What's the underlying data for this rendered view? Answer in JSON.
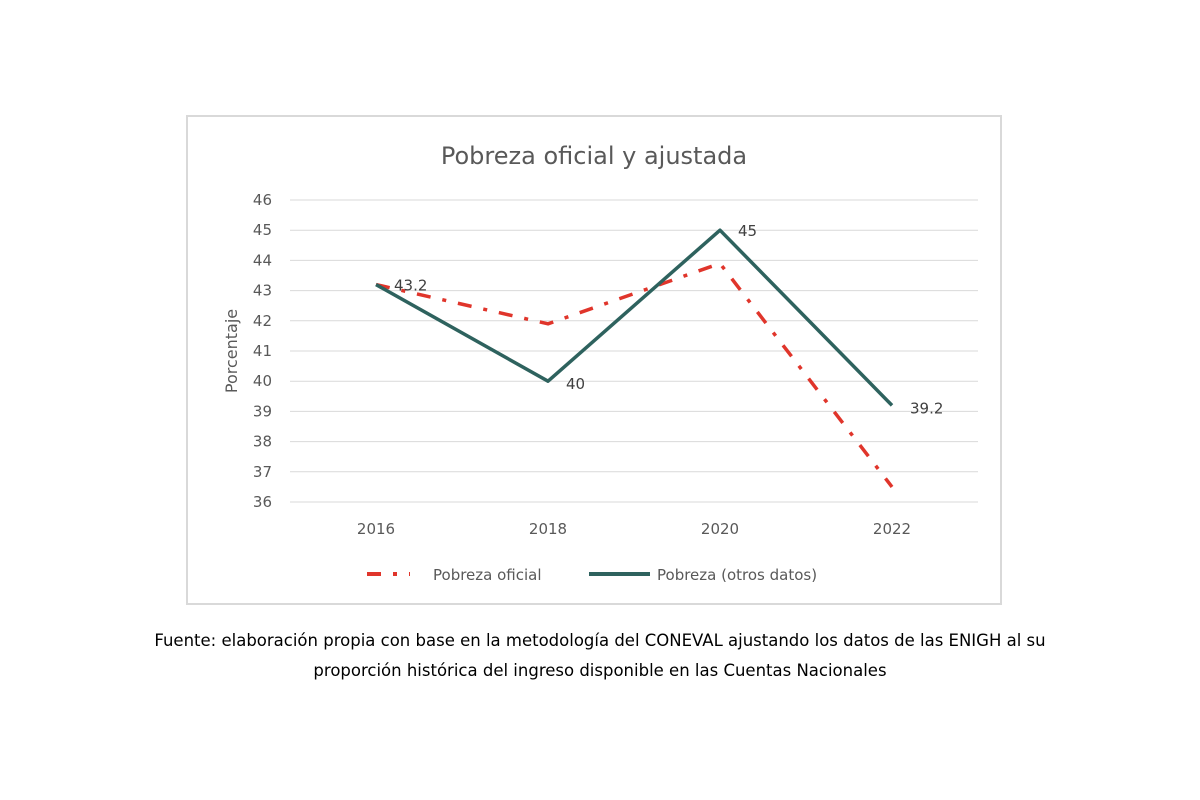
{
  "chart_data": {
    "type": "line",
    "title": "Pobreza oficial y ajustada",
    "ylabel": "Porcentaje",
    "xlabel": "",
    "categories": [
      "2016",
      "2018",
      "2020",
      "2022"
    ],
    "ylim": [
      36,
      46
    ],
    "yticks": [
      "36",
      "37",
      "38",
      "39",
      "40",
      "41",
      "42",
      "43",
      "44",
      "45",
      "46"
    ],
    "grid": true,
    "legend_position": "bottom",
    "series": [
      {
        "name": "Pobreza oficial",
        "values": [
          43.2,
          41.9,
          43.9,
          36.5
        ],
        "color": "#e0352b",
        "style": "dash-dot"
      },
      {
        "name": "Pobreza (otros datos)",
        "values": [
          43.2,
          40,
          45,
          39.2
        ],
        "color": "#2e625e",
        "style": "solid"
      }
    ],
    "data_labels": [
      "43.2",
      "40",
      "45",
      "39.2"
    ]
  },
  "caption": {
    "line1": "Fuente: elaboración propia con base en la metodología del CONEVAL ajustando los datos de las ENIGH al su",
    "line2": "proporción histórica del ingreso disponible en las Cuentas Nacionales"
  }
}
